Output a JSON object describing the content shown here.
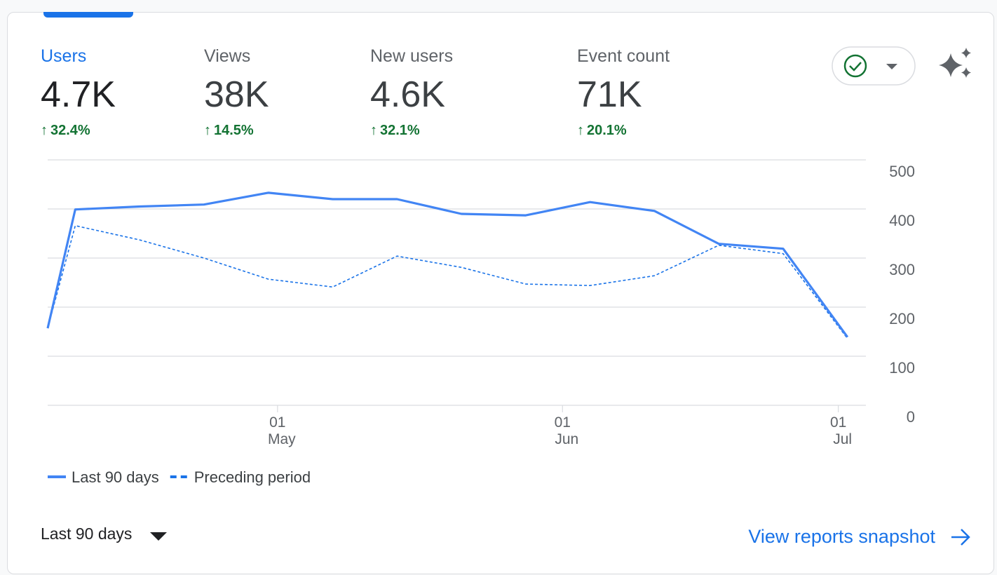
{
  "metrics": [
    {
      "name": "Users",
      "value": "4.7K",
      "change": "32.4%"
    },
    {
      "name": "Views",
      "value": "38K",
      "change": "14.5%"
    },
    {
      "name": "New users",
      "value": "4.6K",
      "change": "32.1%"
    },
    {
      "name": "Event count",
      "value": "71K",
      "change": "20.1%"
    }
  ],
  "chart_data": {
    "type": "line",
    "x": [
      "04-06",
      "04-09",
      "04-16",
      "04-23",
      "04-30",
      "05-07",
      "05-14",
      "05-21",
      "05-28",
      "06-04",
      "06-11",
      "06-18",
      "06-25",
      "07-02"
    ],
    "xlim": [
      "04-06",
      "07-04"
    ],
    "xticks": [
      {
        "value": "05-01",
        "label": [
          "01",
          "May"
        ]
      },
      {
        "value": "06-01",
        "label": [
          "01",
          "Jun"
        ]
      },
      {
        "value": "07-01",
        "label": [
          "01",
          "Jul"
        ]
      }
    ],
    "ylim": [
      0,
      500
    ],
    "yticks": [
      0,
      100,
      200,
      300,
      400,
      500
    ],
    "grid": true,
    "series": [
      {
        "name": "Last 90 days",
        "color": "#4285f4",
        "dashed": false,
        "values": [
          157,
          399,
          405,
          409,
          433,
          420,
          420,
          390,
          387,
          414,
          396,
          329,
          319,
          139
        ]
      },
      {
        "name": "Preceding period",
        "color": "#1a73e8",
        "dashed": true,
        "values": [
          157,
          366,
          337,
          300,
          257,
          241,
          304,
          281,
          247,
          244,
          264,
          326,
          309,
          136
        ]
      }
    ]
  },
  "date_range": "Last 90 days",
  "link": "View reports snapshot"
}
